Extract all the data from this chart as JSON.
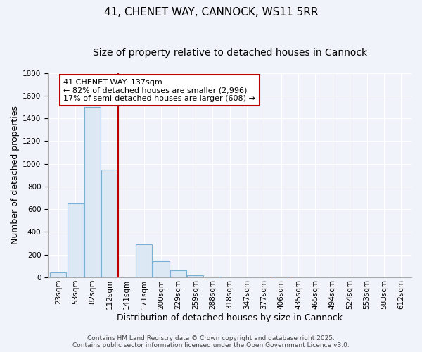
{
  "title": "41, CHENET WAY, CANNOCK, WS11 5RR",
  "subtitle": "Size of property relative to detached houses in Cannock",
  "xlabel": "Distribution of detached houses by size in Cannock",
  "ylabel": "Number of detached properties",
  "categories": [
    "23sqm",
    "53sqm",
    "82sqm",
    "112sqm",
    "141sqm",
    "171sqm",
    "200sqm",
    "229sqm",
    "259sqm",
    "288sqm",
    "318sqm",
    "347sqm",
    "377sqm",
    "406sqm",
    "435sqm",
    "465sqm",
    "494sqm",
    "524sqm",
    "553sqm",
    "583sqm",
    "612sqm"
  ],
  "values": [
    45,
    650,
    1500,
    950,
    0,
    290,
    140,
    62,
    20,
    8,
    3,
    2,
    1,
    8,
    0,
    0,
    0,
    0,
    0,
    0,
    0
  ],
  "bar_color_face": "#dce9f5",
  "bar_color_edge": "#7ab0d4",
  "vline_x_index": 4,
  "vline_color": "#bb0000",
  "annotation_title": "41 CHENET WAY: 137sqm",
  "annotation_line2": "← 82% of detached houses are smaller (2,996)",
  "annotation_line3": "17% of semi-detached houses are larger (608) →",
  "annotation_box_edgecolor": "#bb0000",
  "annotation_box_facecolor": "#ffffff",
  "footer_line1": "Contains HM Land Registry data © Crown copyright and database right 2025.",
  "footer_line2": "Contains public sector information licensed under the Open Government Licence v3.0.",
  "background_color": "#f0f4fa",
  "plot_background": "#f0f4fa",
  "ylim": [
    0,
    1800
  ],
  "yticks": [
    0,
    200,
    400,
    600,
    800,
    1000,
    1200,
    1400,
    1600,
    1800
  ],
  "title_fontsize": 11,
  "subtitle_fontsize": 10,
  "label_fontsize": 9,
  "tick_fontsize": 7.5,
  "footer_fontsize": 6.5,
  "annotation_fontsize": 8
}
